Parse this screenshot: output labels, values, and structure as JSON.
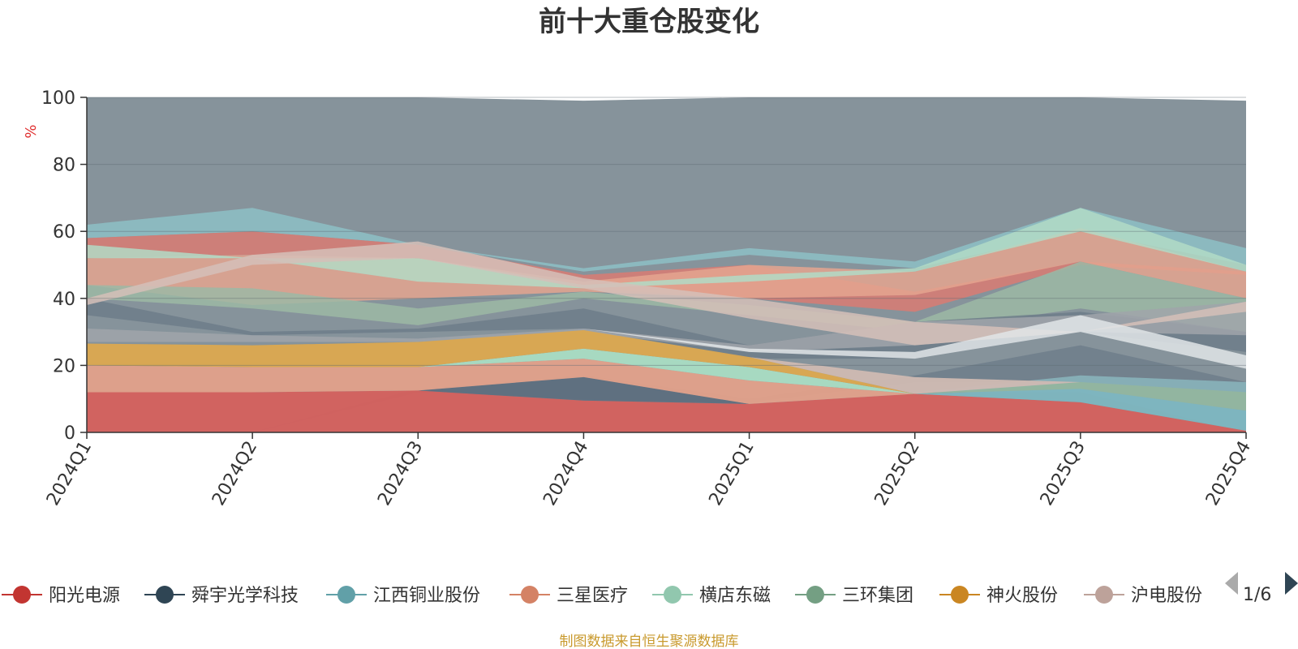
{
  "chart_data": {
    "type": "area",
    "title": "前十大重仓股变化",
    "ylabel": "%",
    "ylim": [
      0,
      100
    ],
    "yticks": [
      0,
      20,
      40,
      60,
      80,
      100
    ],
    "grid": true,
    "legend_position": "bottom",
    "categories": [
      "2024Q1",
      "2024Q2",
      "2024Q3",
      "2024Q4",
      "2025Q1",
      "2025Q2",
      "2025Q3",
      "2025Q4"
    ],
    "series": [
      {
        "name": "阳光电源",
        "color": "#d5605d",
        "values": [
          12.0,
          12.0,
          12.5,
          9.5,
          8.5,
          11.5,
          9.0,
          0.5
        ]
      },
      {
        "name": "舜宇光学科技",
        "color": "#5e6f7f",
        "values": [
          0.0,
          0.0,
          0.0,
          7.0,
          0.0,
          0.0,
          0.0,
          0.0
        ]
      },
      {
        "name": "江西铜业股份",
        "color": "#7db5bf",
        "values": [
          0.0,
          0.0,
          0.0,
          0.0,
          0.0,
          0.0,
          4.0,
          6.0
        ]
      },
      {
        "name": "三星医疗",
        "color": "#e2a08a",
        "values": [
          8.0,
          7.5,
          7.0,
          5.5,
          7.0,
          0.0,
          0.0,
          0.0
        ]
      },
      {
        "name": "横店东磁",
        "color": "#a9dcc3",
        "values": [
          0.0,
          0.0,
          0.0,
          3.0,
          4.0,
          0.0,
          0.0,
          0.0
        ]
      },
      {
        "name": "三环集团",
        "color": "#92b59e",
        "values": [
          0.0,
          0.0,
          0.0,
          0.0,
          0.0,
          0.0,
          2.0,
          5.5
        ]
      },
      {
        "name": "神火股份",
        "color": "#dca84f",
        "values": [
          6.5,
          6.5,
          7.5,
          5.5,
          3.0,
          0.0,
          0.0,
          0.0
        ]
      },
      {
        "name": "沪电股份",
        "color": "#cfb9b2",
        "values": [
          0.0,
          0.0,
          0.0,
          0.0,
          0.0,
          5.0,
          0.0,
          0.0
        ]
      }
    ]
  },
  "legend": {
    "items": [
      "阳光电源",
      "舜宇光学科技",
      "江西铜业股份",
      "三星医疗",
      "横店东磁",
      "三环集团",
      "神火股份",
      "沪电股份"
    ],
    "page": "1/6"
  },
  "source_text": "制图数据来自恒生聚源数据库"
}
